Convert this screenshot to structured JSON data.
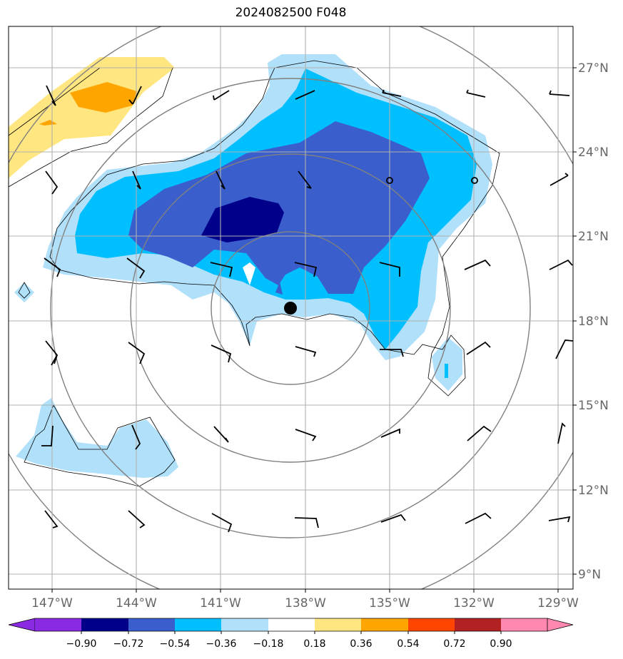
{
  "title": "2024082500 F048",
  "lat_labels": [
    "27°N",
    "24°N",
    "21°N",
    "18°N",
    "15°N",
    "12°N",
    "9°N"
  ],
  "lon_labels": [
    "147°W",
    "144°W",
    "141°W",
    "138°W",
    "135°W",
    "132°W",
    "129°W"
  ],
  "colorbar": {
    "labels": [
      "−0.90",
      "−0.72",
      "−0.54",
      "−0.36",
      "−0.18",
      "0.18",
      "0.36",
      "0.54",
      "0.72",
      "0.90"
    ],
    "colors": [
      "#8a2be2",
      "#00008b",
      "#3a5fcd",
      "#00bfff",
      "#b0e0fa",
      "#ffffff",
      "#ffe680",
      "#ffa500",
      "#ff4500",
      "#b22222",
      "#ff88b0"
    ]
  },
  "map_colors": {
    "strong_negative": "#00008b",
    "moderate_negative": "#3a5fcd",
    "negative": "#00bfff",
    "weak_negative": "#b0e0fa",
    "weak_positive": "#ffe680",
    "positive": "#ffa500"
  },
  "storm_marker": {
    "lat": 18.5,
    "lon": -138.6
  }
}
